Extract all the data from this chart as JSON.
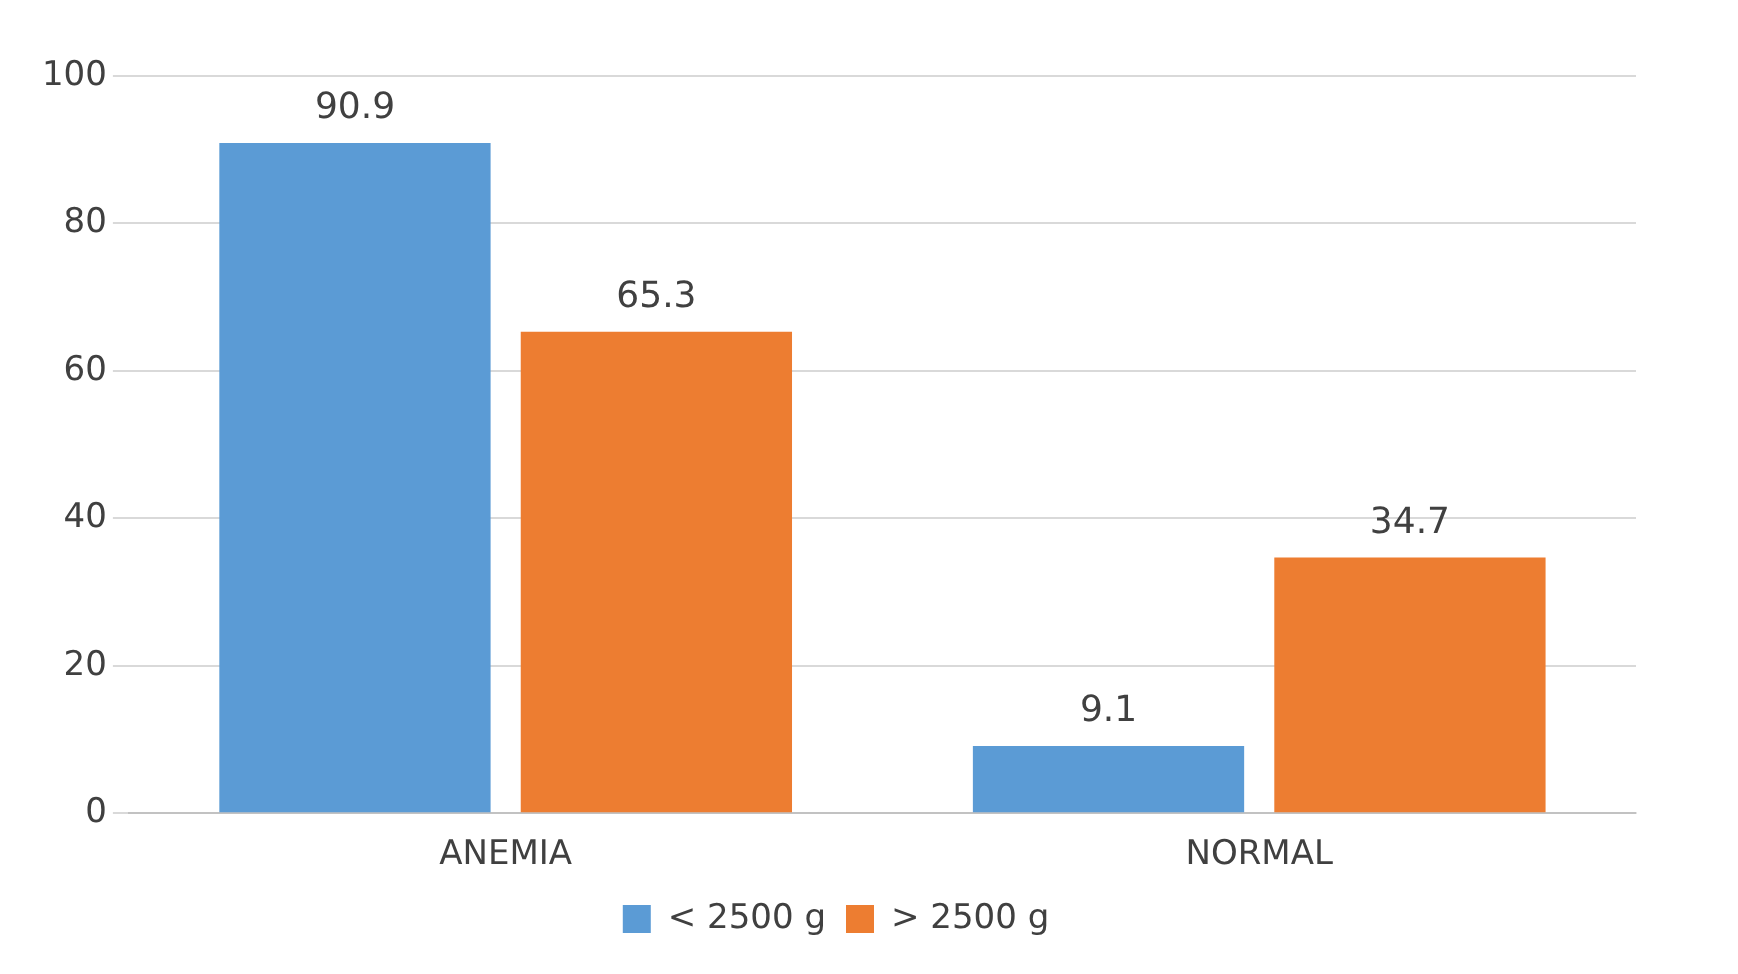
{
  "chart_data": {
    "type": "bar",
    "categories": [
      "ANEMIA",
      "NORMAL"
    ],
    "series": [
      {
        "name": "< 2500 g",
        "color": "#5b9bd5",
        "values": [
          90.9,
          9.1
        ]
      },
      {
        "name": "> 2500 g",
        "color": "#ed7d31",
        "values": [
          65.3,
          34.7
        ]
      }
    ],
    "ylim": [
      0,
      100
    ],
    "yticks": [
      0,
      20,
      40,
      60,
      80,
      100
    ],
    "grid": "y",
    "legend": "bottom",
    "data_labels": true
  }
}
